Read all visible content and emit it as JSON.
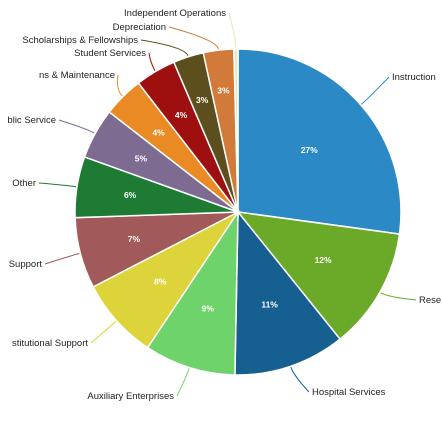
{
  "chart_data": {
    "type": "pie",
    "title": "",
    "categories": [
      "Instruction",
      "Research",
      "Hospital Services",
      "Auxiliary Enterprises",
      "Institutional Support",
      "Academic Support",
      "Other",
      "Public Service",
      "Operations & Maintenance",
      "Student Services",
      "Scholarships & Fellowships",
      "Depreciation",
      "Independent Operations"
    ],
    "values": [
      27,
      12,
      11,
      9,
      8,
      7,
      6,
      5,
      4,
      4,
      3,
      3,
      0.4
    ],
    "value_labels": [
      "27%",
      "12%",
      "11%",
      "9%",
      "8%",
      "7%",
      "6%",
      "5%",
      "4%",
      "4%",
      "3%",
      "3%",
      ""
    ],
    "display_labels": [
      "Instruction",
      "Rese",
      "Hospital Services",
      "Auxiliary Enterprises",
      "stitutional Support",
      "Support",
      "Other",
      "blic Service",
      "ns & Maintenance",
      "Student Services",
      "Scholarships & Fellowships",
      "Depreciation",
      "Independent Operations"
    ],
    "colors": [
      "#2b8ac6",
      "#6aaa28",
      "#165f91",
      "#6ed36b",
      "#dcd43a",
      "#a2595a",
      "#1e7b34",
      "#7e6b91",
      "#ea8a25",
      "#9e1010",
      "#5c4f1d",
      "#d27a3a",
      "#e8e8c0"
    ],
    "legend": "none",
    "start_angle_deg": 0,
    "direction": "clockwise"
  }
}
